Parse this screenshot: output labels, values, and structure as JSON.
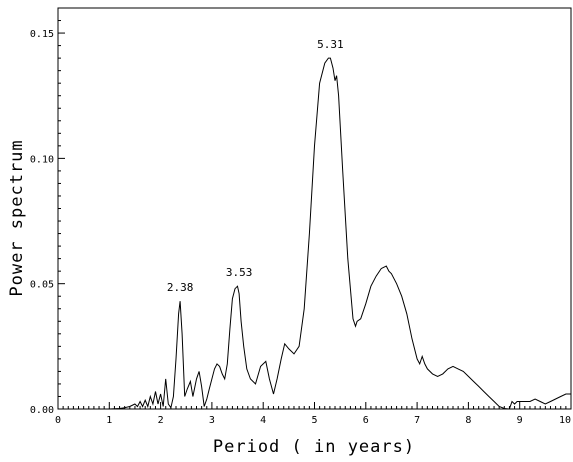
{
  "chart_data": {
    "type": "line",
    "xlabel": "Period ( in years)",
    "ylabel": "Power spectrum",
    "xlim": [
      0,
      10
    ],
    "ylim": [
      0,
      0.16
    ],
    "grid": false,
    "x_ticks": [
      "0",
      "1",
      "2",
      "3",
      "4",
      "5",
      "6",
      "7",
      "8",
      "9",
      "10"
    ],
    "y_ticks": [
      "0.00",
      "0.05",
      "0.10",
      "0.15"
    ],
    "y_tick_values": [
      0,
      0.05,
      0.1,
      0.15
    ],
    "annotations": [
      {
        "label": "2.38",
        "x": 2.38,
        "y": 0.043
      },
      {
        "label": "3.53",
        "x": 3.53,
        "y": 0.049
      },
      {
        "label": "5.31",
        "x": 5.31,
        "y": 0.14
      }
    ],
    "series": [
      {
        "x": [
          1.0,
          1.2,
          1.3,
          1.4,
          1.5,
          1.55,
          1.6,
          1.65,
          1.7,
          1.75,
          1.8,
          1.85,
          1.9,
          1.95,
          2.0,
          2.05,
          2.1,
          2.15,
          2.2,
          2.25,
          2.3,
          2.35,
          2.38,
          2.42,
          2.47,
          2.52,
          2.58,
          2.63,
          2.7,
          2.75,
          2.8,
          2.85,
          2.9,
          2.95,
          3.0,
          3.05,
          3.1,
          3.15,
          3.2,
          3.25,
          3.3,
          3.35,
          3.4,
          3.45,
          3.5,
          3.53,
          3.57,
          3.62,
          3.68,
          3.75,
          3.85,
          3.95,
          4.05,
          4.12,
          4.2,
          4.27,
          4.35,
          4.42,
          4.5,
          4.6,
          4.7,
          4.8,
          4.9,
          5.0,
          5.1,
          5.2,
          5.27,
          5.31,
          5.36,
          5.4,
          5.43,
          5.47,
          5.55,
          5.65,
          5.75,
          5.8,
          5.83,
          5.9,
          6.0,
          6.1,
          6.2,
          6.3,
          6.4,
          6.45,
          6.5,
          6.6,
          6.7,
          6.8,
          6.9,
          7.0,
          7.05,
          7.1,
          7.15,
          7.2,
          7.3,
          7.4,
          7.5,
          7.6,
          7.7,
          7.8,
          7.9,
          8.0,
          8.1,
          8.2,
          8.3,
          8.4,
          8.5,
          8.6,
          8.7,
          8.8,
          8.85,
          8.9,
          8.95,
          9.0,
          9.1,
          9.2,
          9.3,
          9.4,
          9.5,
          9.6,
          9.7,
          9.8,
          9.9,
          10.0
        ],
        "y": [
          0.0,
          0.0002,
          0.0005,
          0.001,
          0.002,
          0.001,
          0.003,
          0.001,
          0.0035,
          0.001,
          0.005,
          0.002,
          0.007,
          0.002,
          0.006,
          0.001,
          0.012,
          0.002,
          0.0005,
          0.005,
          0.02,
          0.038,
          0.043,
          0.03,
          0.005,
          0.008,
          0.011,
          0.005,
          0.012,
          0.015,
          0.009,
          0.001,
          0.004,
          0.008,
          0.012,
          0.016,
          0.018,
          0.017,
          0.014,
          0.012,
          0.018,
          0.032,
          0.044,
          0.048,
          0.049,
          0.046,
          0.035,
          0.025,
          0.016,
          0.012,
          0.01,
          0.017,
          0.019,
          0.012,
          0.006,
          0.012,
          0.02,
          0.026,
          0.024,
          0.022,
          0.025,
          0.04,
          0.07,
          0.105,
          0.13,
          0.138,
          0.14,
          0.14,
          0.136,
          0.131,
          0.133,
          0.125,
          0.095,
          0.06,
          0.036,
          0.033,
          0.035,
          0.036,
          0.042,
          0.049,
          0.053,
          0.056,
          0.057,
          0.055,
          0.054,
          0.05,
          0.045,
          0.038,
          0.028,
          0.02,
          0.018,
          0.021,
          0.018,
          0.016,
          0.014,
          0.013,
          0.014,
          0.016,
          0.017,
          0.016,
          0.015,
          0.013,
          0.011,
          0.009,
          0.007,
          0.005,
          0.003,
          0.001,
          0.0002,
          0.0,
          0.003,
          0.002,
          0.003,
          0.003,
          0.003,
          0.003,
          0.004,
          0.003,
          0.002,
          0.003,
          0.004,
          0.005,
          0.006,
          0.006
        ]
      }
    ]
  }
}
